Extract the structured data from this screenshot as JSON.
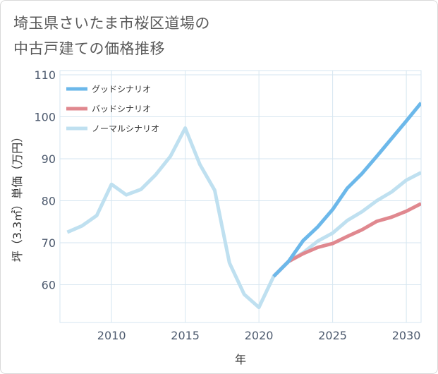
{
  "title": {
    "line1": "埼玉県さいたま市桜区道場の",
    "line2": "中古戸建ての価格推移"
  },
  "chart_data": {
    "type": "line",
    "xlabel": "年",
    "ylabel": "坪（3.3㎡）単価（万円）",
    "xlim": [
      2006.5,
      2031
    ],
    "ylim": [
      51,
      111
    ],
    "xticks": [
      2010,
      2015,
      2020,
      2025,
      2030
    ],
    "yticks": [
      60,
      70,
      80,
      90,
      100,
      110
    ],
    "grid": true,
    "legend_position": "top-left",
    "series": [
      {
        "name": "グッドシナリオ",
        "color": "#6cb8ea",
        "x": [
          2021,
          2022,
          2023,
          2024,
          2025,
          2026,
          2027,
          2028,
          2029,
          2030,
          2031
        ],
        "y": [
          62,
          65.5,
          70.5,
          73.8,
          77.9,
          83.0,
          86.5,
          90.6,
          94.8,
          99.0,
          103.3
        ]
      },
      {
        "name": "バッドシナリオ",
        "color": "#e0888f",
        "x": [
          2021,
          2022,
          2023,
          2024,
          2025,
          2026,
          2027,
          2028,
          2029,
          2030,
          2031
        ],
        "y": [
          62,
          65.5,
          67.4,
          68.9,
          69.8,
          71.5,
          73.1,
          75.1,
          76.1,
          77.5,
          79.3
        ]
      },
      {
        "name": "ノーマルシナリオ",
        "color": "#bfe0f0",
        "x": [
          2007,
          2008,
          2009,
          2010,
          2011,
          2012,
          2013,
          2014,
          2015,
          2016,
          2017,
          2018,
          2019,
          2020,
          2021,
          2022,
          2023,
          2024,
          2025,
          2026,
          2027,
          2028,
          2029,
          2030,
          2031
        ],
        "y": [
          72.5,
          74.0,
          76.5,
          83.9,
          81.4,
          82.7,
          86.2,
          90.6,
          97.3,
          88.6,
          82.5,
          65.2,
          57.7,
          54.6,
          62.0,
          65.5,
          67.6,
          70.4,
          72.3,
          75.3,
          77.4,
          80.0,
          82.1,
          84.9,
          86.7
        ]
      }
    ]
  }
}
